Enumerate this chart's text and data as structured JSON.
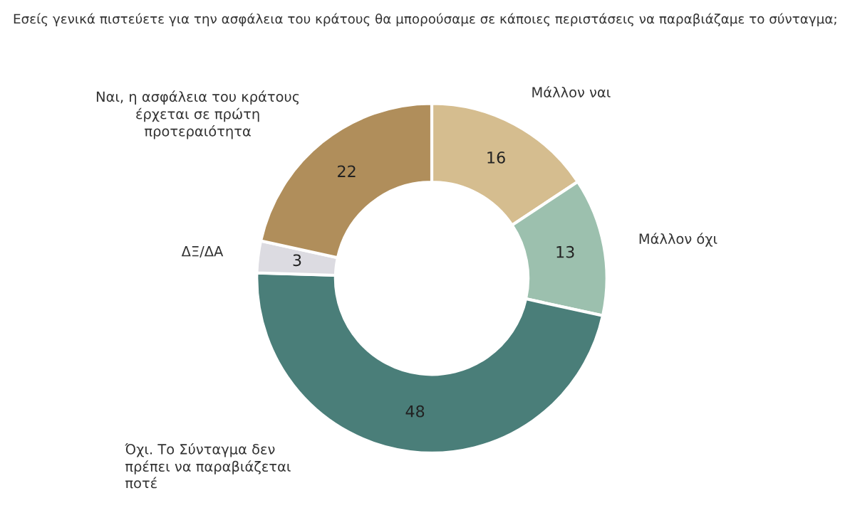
{
  "chart_data": {
    "type": "donut",
    "title": "Εσείς γενικά πιστεύετε για την ασφάλεια του κράτους θα μπορούσαμε σε κάποιες περιστάσεις να παραβιάζαμε το σύνταγμα;",
    "categories": [
      "Μάλλον ναι",
      "Μάλλον όχι",
      "Όχι. Το Σύνταγμα δεν\nπρέπει να παραβιάζεται\nποτέ",
      "ΔΞ/ΔΑ",
      "Ναι, η ασφάλεια του κράτους\nέρχεται σε πρώτη\nπροτεραιότητα"
    ],
    "values": [
      16,
      13,
      48,
      3,
      22
    ],
    "colors": [
      "#d5bd8f",
      "#9cc0ae",
      "#4a7e79",
      "#dcdbe1",
      "#b08e5b"
    ],
    "data_labels": true,
    "legend": false
  }
}
